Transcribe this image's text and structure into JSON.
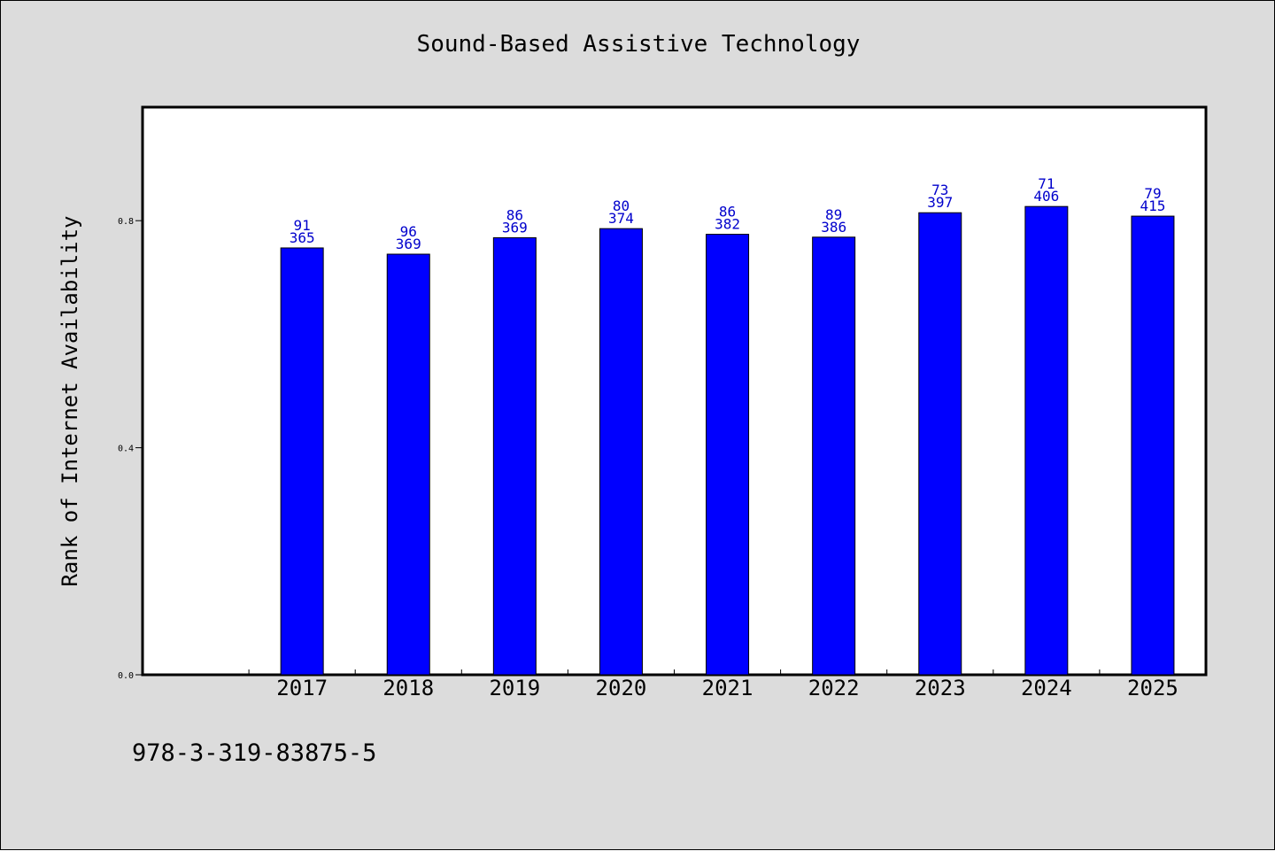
{
  "chart_data": {
    "type": "bar",
    "title": "Sound-Based Assistive Technology",
    "ylabel": "Rank of Internet Availability",
    "xlabel": "",
    "categories": [
      "2017",
      "2018",
      "2019",
      "2020",
      "2021",
      "2022",
      "2023",
      "2024",
      "2025"
    ],
    "values": [
      0.752,
      0.741,
      0.77,
      0.786,
      0.776,
      0.771,
      0.814,
      0.825,
      0.808
    ],
    "bar_labels": [
      [
        "91",
        "365"
      ],
      [
        "96",
        "369"
      ],
      [
        "86",
        "369"
      ],
      [
        "80",
        "374"
      ],
      [
        "86",
        "382"
      ],
      [
        "89",
        "386"
      ],
      [
        "73",
        "397"
      ],
      [
        "71",
        "406"
      ],
      [
        "79",
        "415"
      ]
    ],
    "ylim": [
      0,
      1.0
    ],
    "yticks": [
      "0.0",
      "0.4",
      "0.8"
    ],
    "ytick_values": [
      0.0,
      0.4,
      0.8
    ],
    "grid": false,
    "colors": {
      "bar": "#0000ff",
      "label": "#0000cc",
      "background": "#dcdcdc",
      "plot_background": "#ffffff"
    }
  },
  "footer": {
    "isbn": "978-3-319-83875-5"
  }
}
